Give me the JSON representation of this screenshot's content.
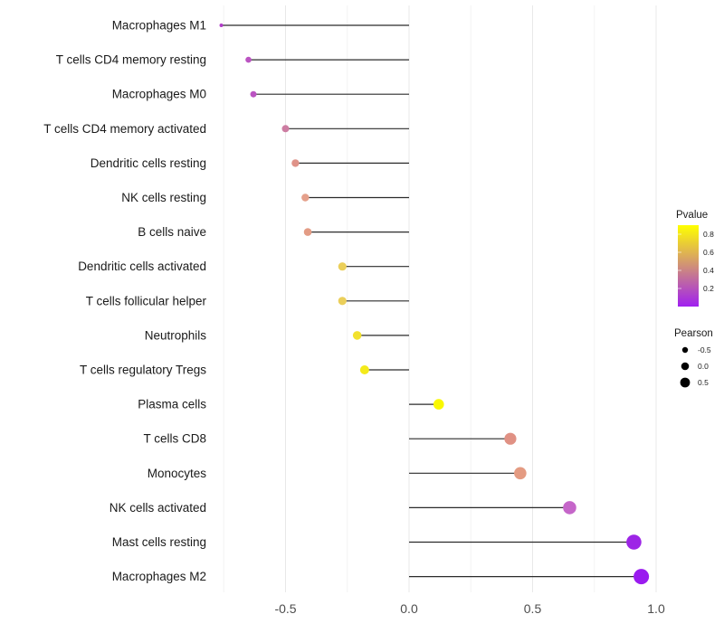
{
  "chart_data": {
    "type": "lollipop",
    "title": "",
    "xlabel": "",
    "ylabel": "",
    "xlim": [
      -0.79,
      1.05
    ],
    "x_ticks": [
      -0.5,
      0.0,
      0.5,
      1.0
    ],
    "x_tick_labels": [
      "-0.5",
      "0.0",
      "0.5",
      "1.0"
    ],
    "x_minor_ticks": [
      -0.75,
      -0.25,
      0.25,
      0.75
    ],
    "grid": true,
    "points": [
      {
        "label": "Macrophages M1",
        "pearson": -0.76,
        "pvalue": 0.05,
        "color": "#b13cc8",
        "radius": 2.0
      },
      {
        "label": "T cells CD4 memory resting",
        "pearson": -0.65,
        "pvalue": 0.13,
        "color": "#bb54c2",
        "radius": 3.3
      },
      {
        "label": "Macrophages M0",
        "pearson": -0.63,
        "pvalue": 0.13,
        "color": "#bb54c2",
        "radius": 3.5
      },
      {
        "label": "T cells CD4 memory activated",
        "pearson": -0.5,
        "pvalue": 0.3,
        "color": "#cd7da2",
        "radius": 4.0
      },
      {
        "label": "Dendritic cells resting",
        "pearson": -0.46,
        "pvalue": 0.45,
        "color": "#df9288",
        "radius": 4.2
      },
      {
        "label": "NK cells resting",
        "pearson": -0.42,
        "pvalue": 0.5,
        "color": "#e5a08b",
        "radius": 4.2
      },
      {
        "label": "B cells naive",
        "pearson": -0.41,
        "pvalue": 0.5,
        "color": "#e39c85",
        "radius": 4.3
      },
      {
        "label": "Dendritic cells activated",
        "pearson": -0.27,
        "pvalue": 0.65,
        "color": "#ebcf5a",
        "radius": 4.6
      },
      {
        "label": "T cells follicular helper",
        "pearson": -0.27,
        "pvalue": 0.65,
        "color": "#ebcf5a",
        "radius": 4.6
      },
      {
        "label": "Neutrophils",
        "pearson": -0.21,
        "pvalue": 0.75,
        "color": "#f2e12d",
        "radius": 4.8
      },
      {
        "label": "T cells regulatory  Tregs",
        "pearson": -0.18,
        "pvalue": 0.8,
        "color": "#f4ea1a",
        "radius": 5.0
      },
      {
        "label": "Plasma cells",
        "pearson": 0.12,
        "pvalue": 0.87,
        "color": "#f9f800",
        "radius": 5.8
      },
      {
        "label": "T cells CD8",
        "pearson": 0.41,
        "pvalue": 0.5,
        "color": "#e09184",
        "radius": 6.6
      },
      {
        "label": "Monocytes",
        "pearson": 0.45,
        "pvalue": 0.53,
        "color": "#e49b82",
        "radius": 6.8
      },
      {
        "label": "NK cells activated",
        "pearson": 0.65,
        "pvalue": 0.18,
        "color": "#c566c9",
        "radius": 7.3
      },
      {
        "label": "Mast cells resting",
        "pearson": 0.91,
        "pvalue": 0.02,
        "color": "#9d25e6",
        "radius": 8.3
      },
      {
        "label": "Macrophages M2",
        "pearson": 0.94,
        "pvalue": 0.01,
        "color": "#9a1bef",
        "radius": 8.5
      }
    ],
    "legend": {
      "pvalue": {
        "title": "Pvalue",
        "ticks": [
          "0.8",
          "0.6",
          "0.4",
          "0.2"
        ],
        "tick_values": [
          0.8,
          0.6,
          0.4,
          0.2
        ],
        "domain": [
          0.0,
          0.9
        ],
        "gradient_high": "#ffff00",
        "gradient_low": "#a020f0"
      },
      "pearson": {
        "title": "Pearson",
        "items": [
          {
            "label": "-0.5",
            "radius": 3.2
          },
          {
            "label": "0.0",
            "radius": 4.3
          },
          {
            "label": "0.5",
            "radius": 5.4
          }
        ],
        "dot_color": "#000000"
      }
    },
    "colors": {
      "stem": "#2b2b2b",
      "grid_major": "#e8e8e8",
      "grid_minor": "#f4f4f4",
      "axis_text": "#4d4d4d",
      "label_text": "#1a1a1a",
      "background": "#ffffff"
    }
  }
}
